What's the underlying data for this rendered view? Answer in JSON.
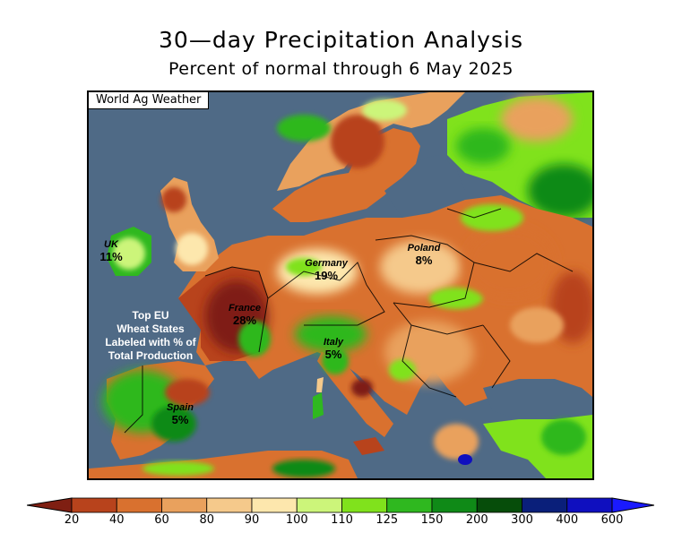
{
  "title": "30—day Precipitation Analysis",
  "subtitle": "Percent of normal through 6 May 2025",
  "credit": "World Ag Weather",
  "note": [
    "Top EU",
    "Wheat States",
    "Labeled with % of",
    "Total Production"
  ],
  "labels": {
    "uk": {
      "name": "UK",
      "value": "11%"
    },
    "france": {
      "name": "France",
      "value": "28%"
    },
    "germany": {
      "name": "Germany",
      "value": "19%"
    },
    "poland": {
      "name": "Poland",
      "value": "8%"
    },
    "italy": {
      "name": "Italy",
      "value": "5%"
    },
    "spain": {
      "name": "Spain",
      "value": "5%"
    }
  },
  "legend": {
    "ticks": [
      "20",
      "40",
      "60",
      "80",
      "90",
      "100",
      "110",
      "125",
      "150",
      "200",
      "300",
      "400",
      "600"
    ],
    "colors": [
      "#7f1f12",
      "#b8431c",
      "#d9712f",
      "#e9a15d",
      "#f5c98b",
      "#fde7ad",
      "#ccf57a",
      "#80e21c",
      "#2fb81f",
      "#0f8a17",
      "#064d0a",
      "#0a1f7a",
      "#0f0fbf",
      "#1a1aff"
    ]
  }
}
